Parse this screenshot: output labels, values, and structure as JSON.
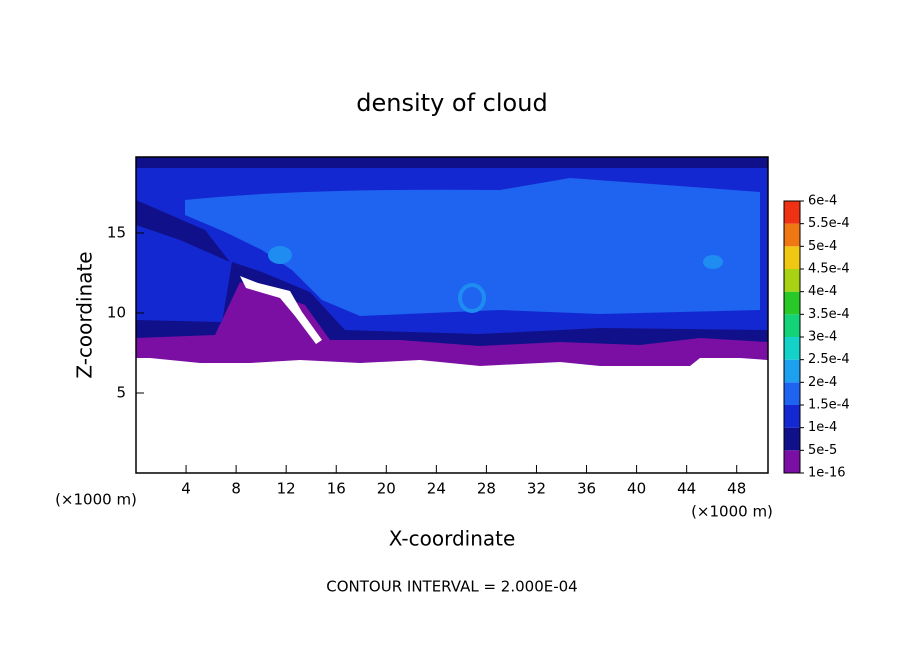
{
  "chart_data": {
    "type": "contour",
    "title": "density of cloud",
    "x_label": "X-coordinate",
    "y_label": "Z-coordinate",
    "x_unit": "(×1000 m)",
    "y_unit": "(×1000 m)",
    "note": "CONTOUR INTERVAL = 2.000E-04",
    "xlim": [
      0,
      50.5
    ],
    "xticks": [
      4,
      8,
      12,
      16,
      20,
      24,
      28,
      32,
      36,
      40,
      44,
      48
    ],
    "ylim": [
      0,
      19.75
    ],
    "yticks": [
      5,
      10,
      15
    ],
    "clim": [
      1e-16,
      0.0006
    ],
    "levels": [
      1e-16,
      {
        "value": 5e-05,
        "label": "5e-5"
      },
      {
        "value": 0.0001,
        "label": "1e-4"
      },
      {
        "value": 0.00015,
        "label": "1.5e-4"
      },
      {
        "value": 0.0002,
        "label": "2e-4"
      },
      {
        "value": 0.00025,
        "label": "2.5e-4"
      },
      {
        "value": 0.0003,
        "label": "3e-4"
      },
      {
        "value": 0.00035,
        "label": "3.5e-4"
      },
      {
        "value": 0.0004,
        "label": "4e-4"
      },
      {
        "value": 0.00045,
        "label": "4.5e-4"
      },
      {
        "value": 0.0005,
        "label": "5e-4"
      },
      {
        "value": 0.00055,
        "label": "5.5e-4"
      },
      {
        "value": 0.0006,
        "label": "6e-4"
      }
    ],
    "level_colors": [
      "#7b0fa3",
      "#10108a",
      "#1428d2",
      "#1e64f0",
      "#1ea0f0",
      "#14d2c8",
      "#14d278",
      "#28c828",
      "#a8d214",
      "#f0c814",
      "#f07814",
      "#f03214"
    ]
  }
}
